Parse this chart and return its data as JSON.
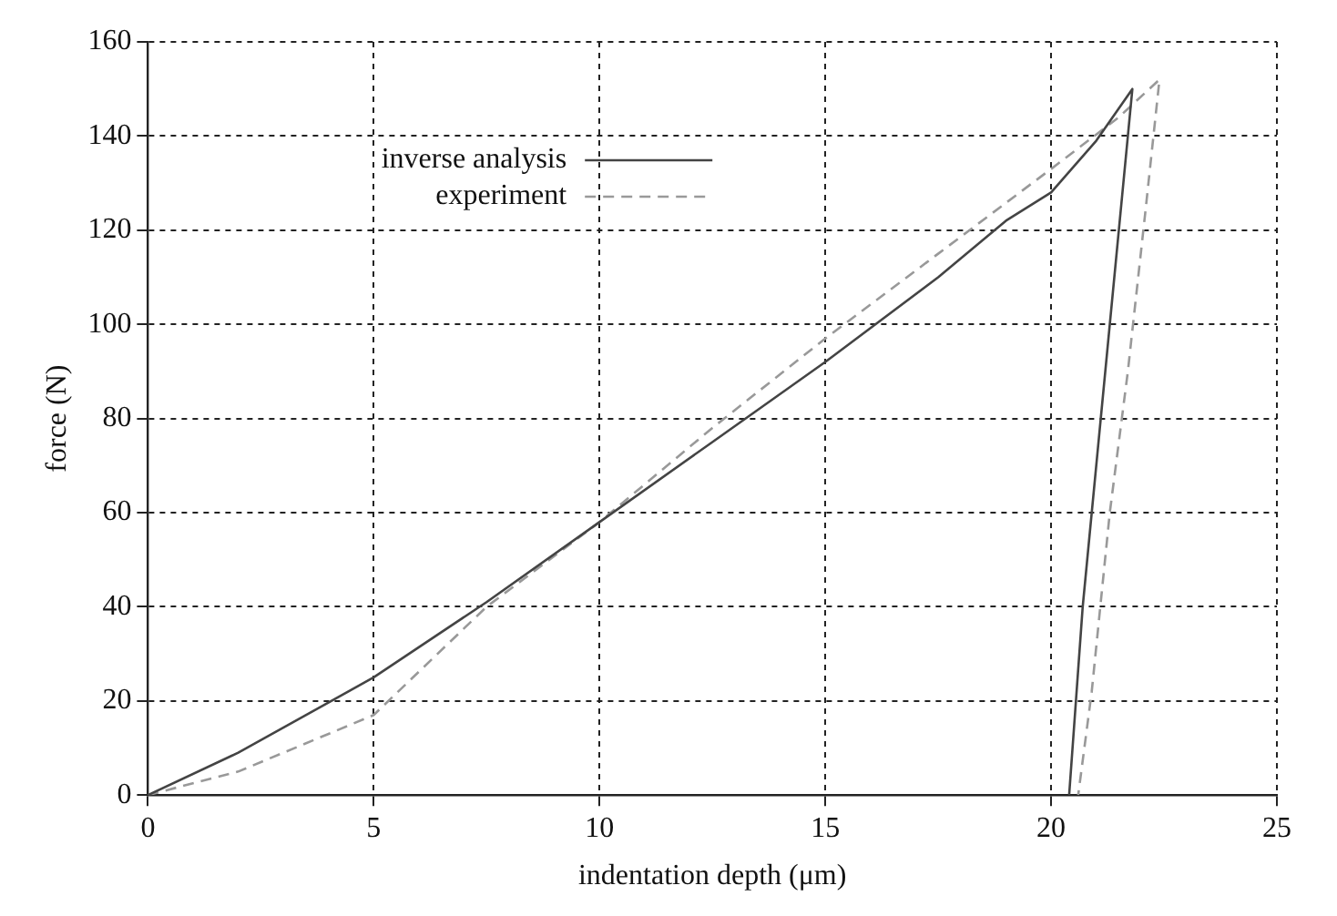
{
  "chart_data": {
    "type": "line",
    "xlabel": "indentation depth (μm)",
    "ylabel": "force (N)",
    "xlim": [
      0,
      25
    ],
    "ylim": [
      0,
      160
    ],
    "xticks": [
      0,
      5,
      10,
      15,
      20,
      25
    ],
    "yticks": [
      0,
      20,
      40,
      60,
      80,
      100,
      120,
      140,
      160
    ],
    "grid": true,
    "legend": "top left",
    "marker": "none",
    "series": [
      {
        "name": "inverse analysis",
        "color": "#444444",
        "line_style": "solid",
        "x": [
          0,
          2,
          5,
          7.5,
          10,
          12.5,
          15,
          17.5,
          19,
          20,
          21,
          21.8,
          21.5,
          21.1,
          20.7,
          20.4
        ],
        "values": [
          0,
          9,
          25,
          41,
          58,
          75,
          92,
          110,
          122,
          128,
          139,
          150,
          120,
          80,
          40,
          0
        ]
      },
      {
        "name": "experiment",
        "color": "#999999",
        "line_style": "dashed",
        "x": [
          0,
          2,
          5,
          7.5,
          10,
          12.5,
          15,
          17.5,
          20,
          21.5,
          22.4,
          22.1,
          21.7,
          21.3,
          20.9,
          20.6
        ],
        "values": [
          0,
          5,
          17,
          40,
          58,
          78,
          97,
          115,
          133,
          144,
          152,
          125,
          90,
          60,
          22,
          0
        ]
      }
    ]
  }
}
